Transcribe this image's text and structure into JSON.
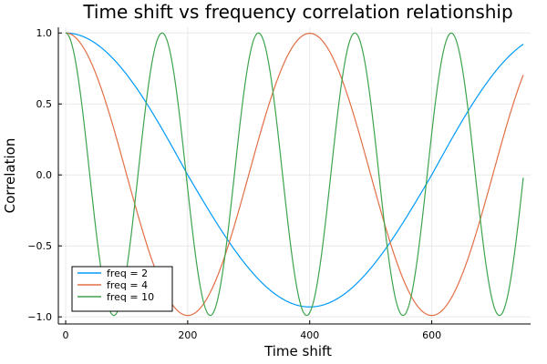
{
  "chart_data": {
    "type": "line",
    "title": "Time shift vs frequency correlation relationship",
    "xlabel": "Time shift",
    "ylabel": "Correlation",
    "xlim": [
      -12,
      762
    ],
    "ylim": [
      -1.05,
      1.04
    ],
    "xticks": [
      0,
      200,
      400,
      600
    ],
    "yticks": [
      -1.0,
      -0.5,
      0.0,
      0.5,
      1.0
    ],
    "xtick_labels": [
      "0",
      "200",
      "400",
      "600"
    ],
    "ytick_labels": [
      "−1.0",
      "−0.5",
      "0.0",
      "0.5",
      "1.0"
    ],
    "grid": true,
    "legend_position": "bottom-left",
    "series": [
      {
        "name": "freq = 2",
        "color": "#009AFA",
        "x_start": 0,
        "x_end": 750,
        "amplitude": 1.0,
        "period": 800,
        "envelope_end": 0.8,
        "min_value": -0.93
      },
      {
        "name": "freq = 4",
        "color": "#E26F46",
        "x_start": 0,
        "x_end": 750,
        "amplitude": 1.0,
        "period": 400,
        "envelope_end": 0.7,
        "min_value": -0.99
      },
      {
        "name": "freq = 10",
        "color": "#3DA44D",
        "x_start": 0,
        "x_end": 750,
        "amplitude": 1.0,
        "period": 158,
        "envelope_end": 0.97,
        "min_value": -0.99
      }
    ]
  }
}
